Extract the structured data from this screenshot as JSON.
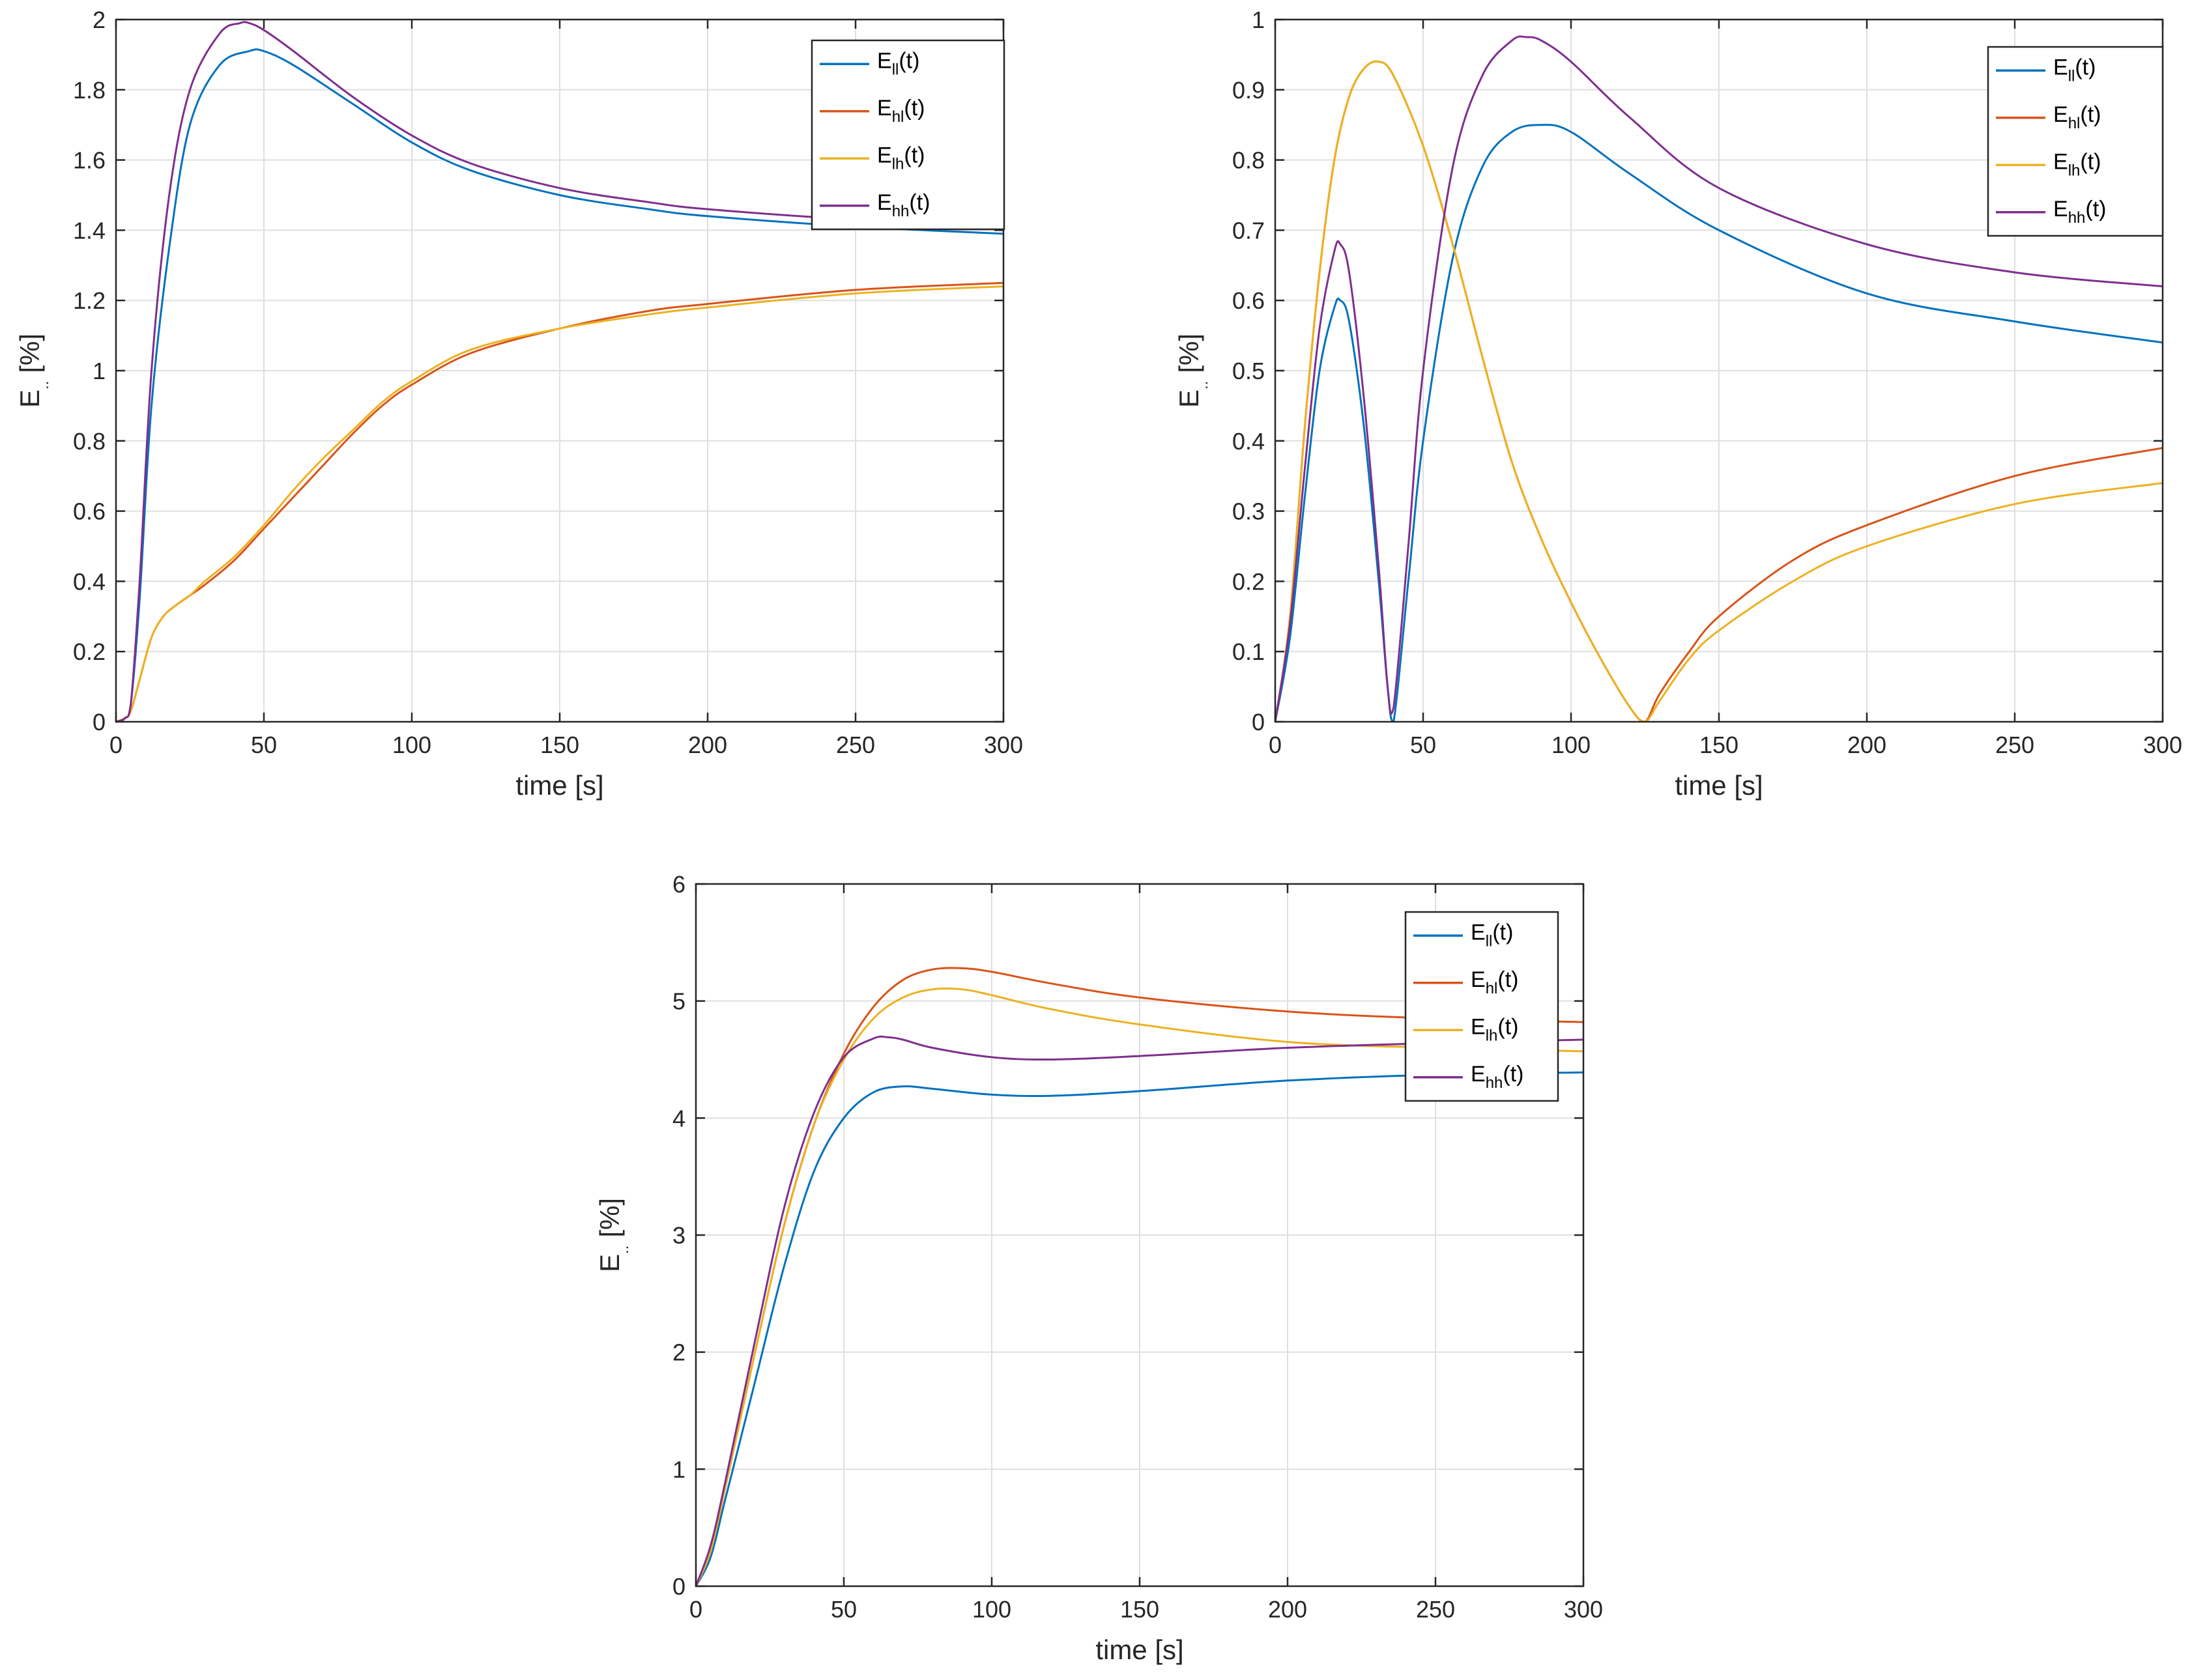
{
  "colors": {
    "ll": "#0072BD",
    "hl": "#D95319",
    "lh": "#EDB120",
    "hh": "#7E2F8E"
  },
  "chart_data": [
    {
      "type": "line",
      "title": "",
      "xlabel": "time [s]",
      "ylabel": "E.. [%]",
      "ylabel_main": "E",
      "ylabel_sub": "..",
      "ylabel_unit": "[%]",
      "xlim": [
        0,
        300
      ],
      "ylim": [
        0,
        2
      ],
      "xticks": [
        0,
        50,
        100,
        150,
        200,
        250,
        300
      ],
      "yticks": [
        0,
        0.2,
        0.4,
        0.6,
        0.8,
        1,
        1.2,
        1.4,
        1.6,
        1.8,
        2
      ],
      "ytick_labels": [
        "0",
        "0.2",
        "0.4",
        "0.6",
        "0.8",
        "1",
        "1.2",
        "1.4",
        "1.6",
        "1.8",
        "2"
      ],
      "grid": true,
      "legend_position": "top-right",
      "series": [
        {
          "name": "E_ll(t)",
          "label_main": "E",
          "label_sub": "ll",
          "label_tail": "(t)",
          "color_key": "ll",
          "x": [
            0,
            3,
            5,
            8,
            12,
            18,
            25,
            35,
            45,
            50,
            60,
            80,
            100,
            120,
            150,
            180,
            200,
            250,
            300
          ],
          "y": [
            0,
            0.01,
            0.05,
            0.35,
            0.9,
            1.35,
            1.7,
            1.87,
            1.91,
            1.91,
            1.87,
            1.76,
            1.65,
            1.57,
            1.5,
            1.46,
            1.44,
            1.41,
            1.39
          ]
        },
        {
          "name": "E_hl(t)",
          "label_main": "E",
          "label_sub": "hl",
          "label_tail": "(t)",
          "color_key": "hl",
          "x": [
            0,
            3,
            5,
            8,
            12,
            16,
            20,
            25,
            30,
            40,
            50,
            60,
            70,
            80,
            90,
            100,
            120,
            150,
            180,
            200,
            250,
            300
          ],
          "y": [
            0,
            0.01,
            0.03,
            0.12,
            0.24,
            0.3,
            0.33,
            0.36,
            0.39,
            0.46,
            0.55,
            0.64,
            0.73,
            0.82,
            0.9,
            0.96,
            1.05,
            1.12,
            1.17,
            1.19,
            1.23,
            1.25
          ]
        },
        {
          "name": "E_lh(t)",
          "label_main": "E",
          "label_sub": "lh",
          "label_tail": "(t)",
          "color_key": "lh",
          "x": [
            0,
            3,
            5,
            8,
            12,
            16,
            20,
            25,
            30,
            40,
            50,
            60,
            70,
            80,
            90,
            100,
            120,
            150,
            180,
            200,
            250,
            300
          ],
          "y": [
            0,
            0.01,
            0.03,
            0.12,
            0.24,
            0.3,
            0.33,
            0.36,
            0.4,
            0.47,
            0.56,
            0.66,
            0.75,
            0.83,
            0.91,
            0.97,
            1.06,
            1.12,
            1.16,
            1.18,
            1.22,
            1.24
          ]
        },
        {
          "name": "E_hh(t)",
          "label_main": "E",
          "label_sub": "hh",
          "label_tail": "(t)",
          "color_key": "hh",
          "x": [
            0,
            3,
            5,
            8,
            12,
            18,
            25,
            35,
            42,
            45,
            50,
            60,
            80,
            100,
            120,
            150,
            180,
            200,
            250,
            300
          ],
          "y": [
            0,
            0.01,
            0.05,
            0.4,
            1.0,
            1.5,
            1.8,
            1.96,
            1.99,
            1.99,
            1.97,
            1.91,
            1.78,
            1.67,
            1.59,
            1.52,
            1.48,
            1.46,
            1.43,
            1.41
          ]
        }
      ]
    },
    {
      "type": "line",
      "title": "",
      "xlabel": "time [s]",
      "ylabel": "E.. [%]",
      "ylabel_main": "E",
      "ylabel_sub": "..",
      "ylabel_unit": "[%]",
      "xlim": [
        0,
        300
      ],
      "ylim": [
        0,
        1
      ],
      "xticks": [
        0,
        50,
        100,
        150,
        200,
        250,
        300
      ],
      "yticks": [
        0,
        0.1,
        0.2,
        0.3,
        0.4,
        0.5,
        0.6,
        0.7,
        0.8,
        0.9,
        1
      ],
      "ytick_labels": [
        "0",
        "0.1",
        "0.2",
        "0.3",
        "0.4",
        "0.5",
        "0.6",
        "0.7",
        "0.8",
        "0.9",
        "1"
      ],
      "grid": true,
      "legend_position": "top-right",
      "series": [
        {
          "name": "E_ll(t)",
          "label_main": "E",
          "label_sub": "ll",
          "label_tail": "(t)",
          "color_key": "ll",
          "x": [
            0,
            5,
            10,
            15,
            20,
            22,
            25,
            30,
            35,
            38,
            40,
            45,
            50,
            60,
            70,
            80,
            90,
            100,
            120,
            150,
            200,
            250,
            300
          ],
          "y": [
            0,
            0.12,
            0.32,
            0.5,
            0.59,
            0.6,
            0.57,
            0.42,
            0.2,
            0.05,
            0.0,
            0.2,
            0.4,
            0.66,
            0.79,
            0.84,
            0.85,
            0.84,
            0.78,
            0.7,
            0.61,
            0.57,
            0.54
          ]
        },
        {
          "name": "E_hl(t)",
          "label_main": "E",
          "label_sub": "hl",
          "label_tail": "(t)",
          "color_key": "hl",
          "x": [
            0,
            5,
            10,
            15,
            20,
            25,
            30,
            35,
            40,
            50,
            60,
            70,
            80,
            90,
            100,
            110,
            120,
            125,
            130,
            140,
            150,
            175,
            200,
            250,
            300
          ],
          "y": [
            0,
            0.15,
            0.42,
            0.64,
            0.8,
            0.89,
            0.93,
            0.94,
            0.92,
            0.82,
            0.68,
            0.52,
            0.37,
            0.26,
            0.17,
            0.09,
            0.02,
            0.0,
            0.04,
            0.1,
            0.15,
            0.23,
            0.28,
            0.35,
            0.39
          ]
        },
        {
          "name": "E_lh(t)",
          "label_main": "E",
          "label_sub": "lh",
          "label_tail": "(t)",
          "color_key": "lh",
          "x": [
            0,
            5,
            10,
            15,
            20,
            25,
            30,
            35,
            40,
            50,
            60,
            70,
            80,
            90,
            100,
            110,
            120,
            125,
            130,
            140,
            150,
            175,
            200,
            250,
            300
          ],
          "y": [
            0,
            0.15,
            0.42,
            0.64,
            0.8,
            0.89,
            0.93,
            0.94,
            0.92,
            0.82,
            0.68,
            0.52,
            0.37,
            0.26,
            0.17,
            0.09,
            0.02,
            0.0,
            0.03,
            0.09,
            0.13,
            0.2,
            0.25,
            0.31,
            0.34
          ]
        },
        {
          "name": "E_hh(t)",
          "label_main": "E",
          "label_sub": "hh",
          "label_tail": "(t)",
          "color_key": "hh",
          "x": [
            0,
            5,
            10,
            15,
            20,
            22,
            25,
            30,
            35,
            38,
            40,
            45,
            50,
            60,
            70,
            80,
            85,
            90,
            100,
            120,
            150,
            200,
            250,
            300
          ],
          "y": [
            0,
            0.14,
            0.36,
            0.56,
            0.67,
            0.68,
            0.64,
            0.46,
            0.22,
            0.05,
            0.02,
            0.25,
            0.5,
            0.79,
            0.92,
            0.97,
            0.975,
            0.97,
            0.94,
            0.86,
            0.76,
            0.68,
            0.64,
            0.62
          ]
        }
      ]
    },
    {
      "type": "line",
      "title": "",
      "xlabel": "time [s]",
      "ylabel": "E.. [%]",
      "ylabel_main": "E",
      "ylabel_sub": "..",
      "ylabel_unit": "[%]",
      "xlim": [
        0,
        300
      ],
      "ylim": [
        0,
        6
      ],
      "xticks": [
        0,
        50,
        100,
        150,
        200,
        250,
        300
      ],
      "yticks": [
        0,
        1,
        2,
        3,
        4,
        5,
        6
      ],
      "ytick_labels": [
        "0",
        "1",
        "2",
        "3",
        "4",
        "5",
        "6"
      ],
      "grid": true,
      "legend_position": "top-right",
      "series": [
        {
          "name": "E_ll(t)",
          "label_main": "E",
          "label_sub": "ll",
          "label_tail": "(t)",
          "color_key": "ll",
          "x": [
            0,
            5,
            10,
            20,
            30,
            40,
            50,
            60,
            70,
            80,
            100,
            120,
            150,
            200,
            250,
            300
          ],
          "y": [
            0,
            0.25,
            0.75,
            1.75,
            2.75,
            3.55,
            4.0,
            4.22,
            4.27,
            4.25,
            4.2,
            4.19,
            4.23,
            4.32,
            4.37,
            4.39
          ]
        },
        {
          "name": "E_hl(t)",
          "label_main": "E",
          "label_sub": "hl",
          "label_tail": "(t)",
          "color_key": "hl",
          "x": [
            0,
            5,
            10,
            20,
            30,
            40,
            50,
            60,
            70,
            80,
            90,
            100,
            120,
            150,
            200,
            250,
            300
          ],
          "y": [
            0,
            0.3,
            0.85,
            2.0,
            3.1,
            3.95,
            4.55,
            4.95,
            5.18,
            5.27,
            5.28,
            5.25,
            5.15,
            5.03,
            4.91,
            4.85,
            4.82
          ]
        },
        {
          "name": "E_lh(t)",
          "label_main": "E",
          "label_sub": "lh",
          "label_tail": "(t)",
          "color_key": "lh",
          "x": [
            0,
            5,
            10,
            20,
            30,
            40,
            50,
            60,
            70,
            80,
            90,
            100,
            120,
            150,
            200,
            250,
            300
          ],
          "y": [
            0,
            0.3,
            0.85,
            2.0,
            3.1,
            3.95,
            4.5,
            4.85,
            5.03,
            5.1,
            5.1,
            5.05,
            4.93,
            4.8,
            4.65,
            4.6,
            4.57
          ]
        },
        {
          "name": "E_hh(t)",
          "label_main": "E",
          "label_sub": "hh",
          "label_tail": "(t)",
          "color_key": "hh",
          "x": [
            0,
            5,
            10,
            20,
            30,
            40,
            50,
            60,
            65,
            70,
            80,
            100,
            120,
            150,
            200,
            250,
            300
          ],
          "y": [
            0,
            0.35,
            0.9,
            2.1,
            3.25,
            4.05,
            4.52,
            4.68,
            4.69,
            4.67,
            4.6,
            4.52,
            4.5,
            4.53,
            4.6,
            4.64,
            4.67
          ]
        }
      ]
    }
  ]
}
